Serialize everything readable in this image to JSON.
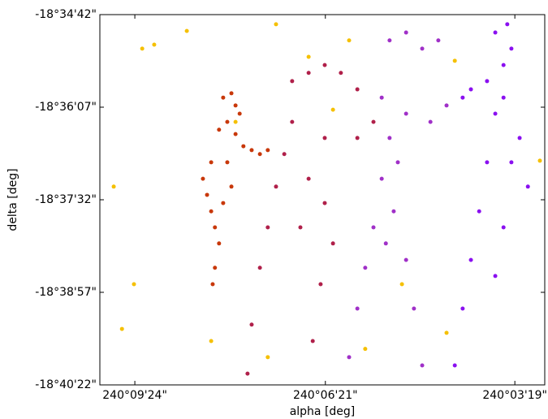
{
  "chart_data": {
    "type": "scatter",
    "xlabel": "alpha [deg]",
    "ylabel": "delta [deg]",
    "xlim": [
      240.166,
      240.0473
    ],
    "ylim": [
      -18.672778,
      -18.578333
    ],
    "xticks": [
      {
        "value": 240.156667,
        "label": "240°09'24\""
      },
      {
        "value": 240.105833,
        "label": "240°06'21\""
      },
      {
        "value": 240.055278,
        "label": "240°03'19\""
      }
    ],
    "yticks": [
      {
        "value": -18.578333,
        "label": "-18°34'42\""
      },
      {
        "value": -18.601944,
        "label": "-18°36'07\""
      },
      {
        "value": -18.625556,
        "label": "-18°37'32\""
      },
      {
        "value": -18.649167,
        "label": "-18°38'57\""
      },
      {
        "value": -18.672778,
        "label": "-18°40'22\""
      }
    ],
    "grid": false,
    "series": [
      {
        "color": "#c8380a",
        "x": [
          240.1331,
          240.1309,
          240.1298,
          240.1287,
          240.132,
          240.1342,
          240.1298,
          240.1277,
          240.1255,
          240.1233,
          240.1212,
          240.1363,
          240.1374,
          240.1363,
          240.1353,
          240.1342,
          240.1353,
          240.1359,
          240.132,
          240.1309,
          240.1385,
          240.1331
        ],
        "y": [
          -18.5995,
          -18.5984,
          -18.6015,
          -18.6036,
          -18.6057,
          -18.6077,
          -18.6088,
          -18.6119,
          -18.6129,
          -18.6139,
          -18.6129,
          -18.616,
          -18.6243,
          -18.6285,
          -18.6326,
          -18.6367,
          -18.6429,
          -18.6471,
          -18.616,
          -18.6222,
          -18.6202,
          -18.6264
        ]
      },
      {
        "color": "#b0204a",
        "x": [
          240.1147,
          240.1103,
          240.106,
          240.1017,
          240.0973,
          240.1147,
          240.106,
          240.0973,
          240.093,
          240.1168,
          240.119,
          240.1212,
          240.1233,
          240.1255,
          240.1266,
          240.1103,
          240.1125,
          240.106,
          240.1071,
          240.1092,
          240.1038
        ],
        "y": [
          -18.5953,
          -18.5932,
          -18.5912,
          -18.5932,
          -18.5974,
          -18.6057,
          -18.6098,
          -18.6098,
          -18.6057,
          -18.6139,
          -18.6222,
          -18.6326,
          -18.6429,
          -18.6574,
          -18.6699,
          -18.6202,
          -18.6326,
          -18.6264,
          -18.6471,
          -18.6616,
          -18.6367
        ]
      },
      {
        "color": "#a030c8",
        "x": [
          240.0887,
          240.0843,
          240.08,
          240.0757,
          240.0908,
          240.0843,
          240.0778,
          240.0735,
          240.0887,
          240.0908,
          240.093,
          240.0952,
          240.0973,
          240.0995,
          240.0865,
          240.0876,
          240.0843,
          240.0822,
          240.08,
          240.0897
        ],
        "y": [
          -18.5849,
          -18.5829,
          -18.587,
          -18.5849,
          -18.5995,
          -18.6036,
          -18.6057,
          -18.6015,
          -18.6098,
          -18.6202,
          -18.6326,
          -18.6429,
          -18.6533,
          -18.6657,
          -18.616,
          -18.6285,
          -18.6409,
          -18.6533,
          -18.6678,
          -18.6367
        ]
      },
      {
        "color": "#8a10f0",
        "x": [
          240.0605,
          240.0573,
          240.0562,
          240.0583,
          240.0627,
          240.067,
          240.0692,
          240.0583,
          240.0605,
          240.0627,
          240.0648,
          240.067,
          240.0692,
          240.0713,
          240.0562,
          240.0583,
          240.054,
          240.0605,
          240.0518
        ],
        "y": [
          -18.5829,
          -18.5808,
          -18.587,
          -18.5912,
          -18.5953,
          -18.5974,
          -18.5995,
          -18.5995,
          -18.6036,
          -18.616,
          -18.6285,
          -18.6409,
          -18.6533,
          -18.6678,
          -18.616,
          -18.6326,
          -18.6098,
          -18.645,
          -18.6222
        ]
      },
      {
        "color": "#f5c000",
        "x": [
          240.1428,
          240.1515,
          240.1547,
          240.1298,
          240.0952,
          240.0486,
          240.0713,
          240.1623,
          240.1569,
          240.1601,
          240.119,
          240.1038,
          240.0854,
          240.0735,
          240.0995,
          240.1363,
          240.1103,
          240.1212
        ],
        "y": [
          -18.5825,
          -18.586,
          -18.587,
          -18.6057,
          -18.6636,
          -18.6156,
          -18.5901,
          -18.6222,
          -18.6471,
          -18.6585,
          -18.5808,
          -18.6026,
          -18.6471,
          -18.6595,
          -18.5849,
          -18.6616,
          -18.5891,
          -18.6657
        ]
      }
    ]
  }
}
